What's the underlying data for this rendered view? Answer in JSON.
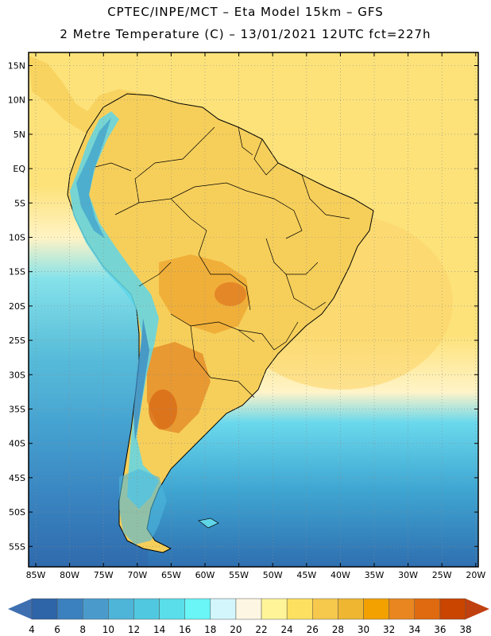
{
  "header": {
    "line1": "CPTEC/INPE/MCT –  Eta Model 15km – GFS",
    "line2": "2 Metre Temperature (C) – 13/01/2021 12UTC fct=227h"
  },
  "map": {
    "lat_labels": [
      "15N",
      "10N",
      "5N",
      "EQ",
      "5S",
      "10S",
      "15S",
      "20S",
      "25S",
      "30S",
      "35S",
      "40S",
      "45S",
      "50S",
      "55S"
    ],
    "lon_labels": [
      "85W",
      "80W",
      "75W",
      "70W",
      "65W",
      "60W",
      "55W",
      "50W",
      "45W",
      "40W",
      "35W",
      "30W",
      "25W",
      "20W"
    ]
  },
  "colorbar": {
    "labels": [
      "4",
      "6",
      "8",
      "10",
      "12",
      "14",
      "16",
      "18",
      "20",
      "22",
      "24",
      "26",
      "28",
      "30",
      "32",
      "34",
      "36",
      "38"
    ],
    "colors": [
      "#2e64a8",
      "#3b80bf",
      "#4a9bcc",
      "#4eb4d8",
      "#50c8e0",
      "#5adeea",
      "#6af5f7",
      "#d2f6fb",
      "#fdf6e2",
      "#fff598",
      "#fde060",
      "#f6c84c",
      "#efb632",
      "#f3a100",
      "#e98620",
      "#df6a10",
      "#c94500"
    ],
    "low_color": "#3e6fb0",
    "high_color": "#c04010"
  },
  "colors": {
    "ocean_warm": "#fde27a",
    "ocean_pale": "#fff4c8",
    "ocean_cold": "#3f8cc6",
    "land_base": "#f6cf5a"
  }
}
